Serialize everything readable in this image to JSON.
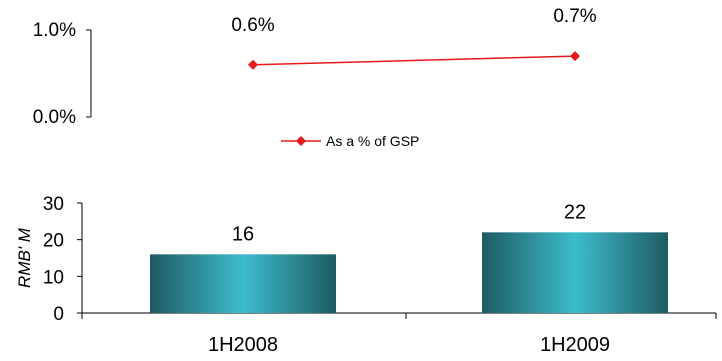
{
  "chart_data": [
    {
      "type": "line",
      "categories": [
        "1H2008",
        "1H2009"
      ],
      "series": [
        {
          "name": "As a % of GSP",
          "values": [
            0.6,
            0.7
          ],
          "data_labels": [
            "0.6%",
            "0.7%"
          ],
          "color": "#e8191c"
        }
      ],
      "ylim": [
        0.0,
        1.0
      ],
      "ytick_labels": [
        "0.0%",
        "1.0%"
      ],
      "legend_position": "bottom-center"
    },
    {
      "type": "bar",
      "categories": [
        "1H2008",
        "1H2009"
      ],
      "values": [
        16,
        22
      ],
      "data_labels": [
        "16",
        "22"
      ],
      "ylabel": "RMB' M",
      "ylim": [
        0,
        30
      ],
      "yticks": [
        0,
        10,
        20,
        30
      ],
      "ytick_labels": [
        "0",
        "10",
        "20",
        "30"
      ],
      "bar_colors": {
        "edge": "#1e5b62",
        "center": "#3dbccd"
      }
    }
  ]
}
